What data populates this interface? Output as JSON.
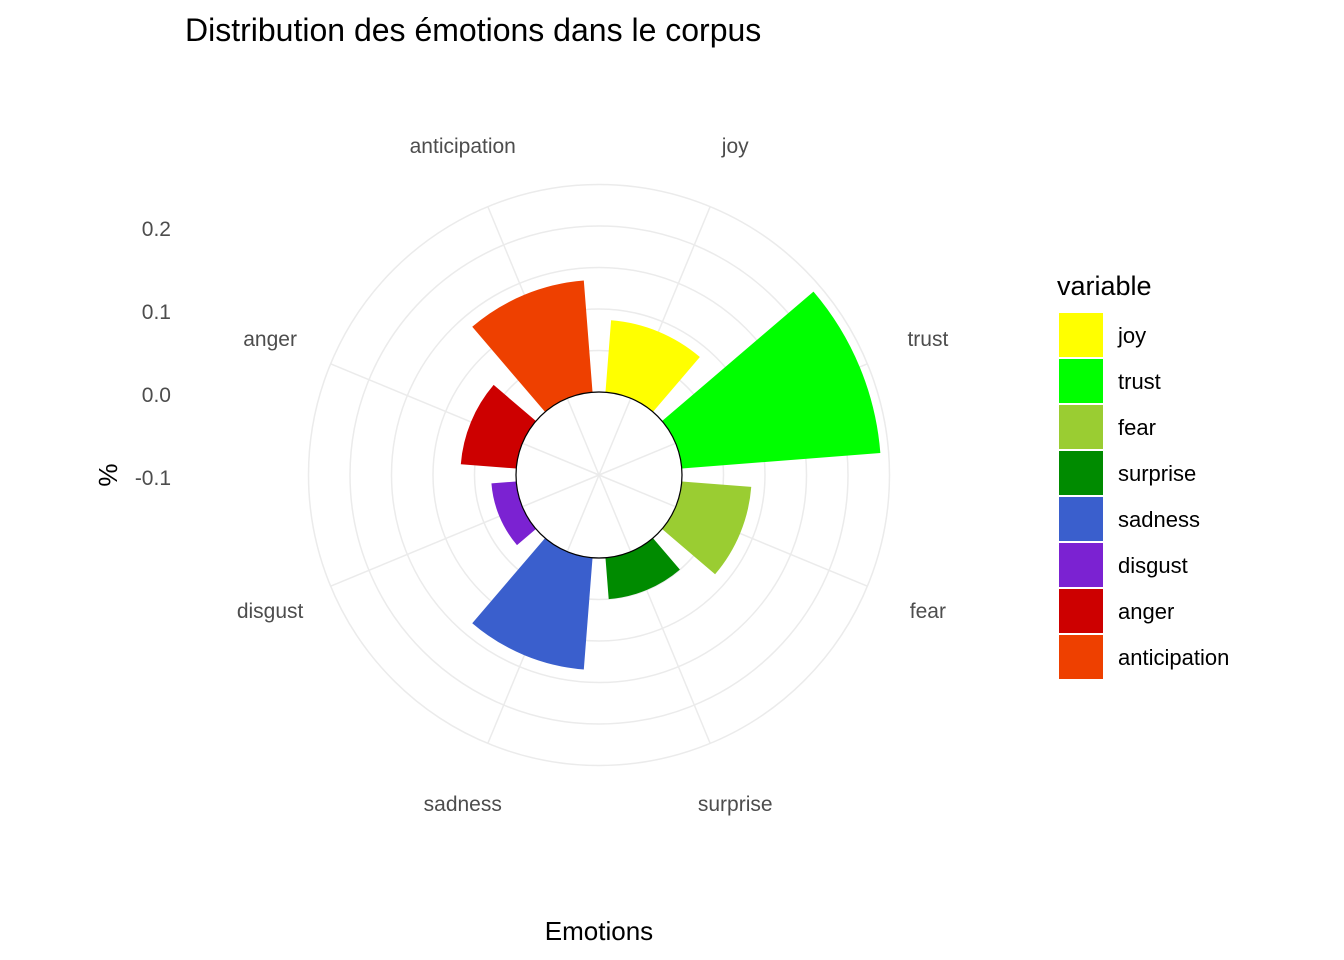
{
  "chart_data": {
    "type": "bar",
    "coord": "polar",
    "title": "Distribution des émotions dans le corpus",
    "xlabel": "Emotions",
    "ylabel": "%",
    "ylim": [
      -0.1,
      0.25
    ],
    "y_ticks": [
      0.2,
      0.1,
      0.0,
      -0.1
    ],
    "y_tick_labels": [
      "0.2",
      "0.1",
      "0.0",
      "-0.1"
    ],
    "grid": true,
    "categories": [
      "joy",
      "trust",
      "fear",
      "surprise",
      "sadness",
      "disgust",
      "anger",
      "anticipation"
    ],
    "values": [
      0.087,
      0.24,
      0.084,
      0.05,
      0.135,
      0.03,
      0.067,
      0.135
    ],
    "colors": [
      "#FFFF00",
      "#00FF00",
      "#9ACD32",
      "#008B00",
      "#3A5FCD",
      "#7B22D2",
      "#CD0000",
      "#EE4000"
    ],
    "legend": {
      "title": "variable",
      "position": "right",
      "entries": [
        "joy",
        "trust",
        "fear",
        "surprise",
        "sadness",
        "disgust",
        "anger",
        "anticipation"
      ]
    }
  }
}
